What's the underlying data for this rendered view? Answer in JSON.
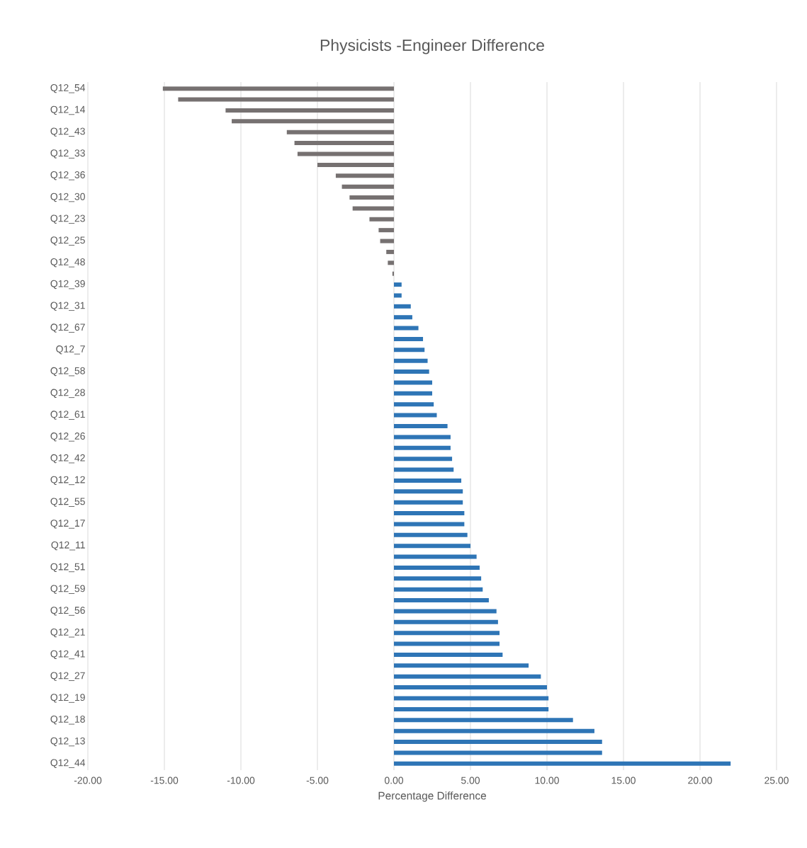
{
  "chart_data": {
    "type": "bar",
    "orientation": "horizontal",
    "title": "Physicists -Engineer Difference",
    "xlabel": "Percentage Difference",
    "categories": [
      "Q12_54",
      null,
      "Q12_14",
      null,
      "Q12_43",
      null,
      "Q12_33",
      null,
      "Q12_36",
      null,
      "Q12_30",
      null,
      "Q12_23",
      null,
      "Q12_25",
      null,
      "Q12_48",
      null,
      "Q12_39",
      null,
      "Q12_31",
      null,
      "Q12_67",
      null,
      "Q12_7",
      null,
      "Q12_58",
      null,
      "Q12_28",
      null,
      "Q12_61",
      null,
      "Q12_26",
      null,
      "Q12_42",
      null,
      "Q12_12",
      null,
      "Q12_55",
      null,
      "Q12_17",
      null,
      "Q12_11",
      null,
      "Q12_51",
      null,
      "Q12_59",
      null,
      "Q12_56",
      null,
      "Q12_21",
      null,
      "Q12_41",
      null,
      "Q12_27",
      null,
      "Q12_19",
      null,
      "Q12_18",
      null,
      "Q12_13",
      null,
      "Q12_44"
    ],
    "values": [
      -15.1,
      -14.1,
      -11.0,
      -10.6,
      -7.0,
      -6.5,
      -6.3,
      -5.0,
      -3.8,
      -3.4,
      -2.9,
      -2.7,
      -1.6,
      -1.0,
      -0.9,
      -0.5,
      -0.4,
      -0.1,
      0.5,
      0.5,
      1.1,
      1.2,
      1.6,
      1.9,
      2.0,
      2.2,
      2.3,
      2.5,
      2.5,
      2.6,
      2.8,
      3.5,
      3.7,
      3.7,
      3.8,
      3.9,
      4.4,
      4.5,
      4.5,
      4.6,
      4.6,
      4.8,
      5.0,
      5.4,
      5.6,
      5.7,
      5.8,
      6.2,
      6.7,
      6.8,
      6.9,
      6.9,
      7.1,
      8.8,
      9.6,
      10.0,
      10.1,
      10.1,
      11.7,
      13.1,
      13.6,
      13.6,
      22.0
    ],
    "colors": [
      "#767171",
      "#767171",
      "#767171",
      "#767171",
      "#767171",
      "#767171",
      "#767171",
      "#767171",
      "#767171",
      "#767171",
      "#767171",
      "#767171",
      "#767171",
      "#767171",
      "#767171",
      "#767171",
      "#767171",
      "#767171",
      "#2e75b6",
      "#2e75b6",
      "#2e75b6",
      "#2e75b6",
      "#2e75b6",
      "#2e75b6",
      "#2e75b6",
      "#2e75b6",
      "#2e75b6",
      "#2e75b6",
      "#2e75b6",
      "#2e75b6",
      "#2e75b6",
      "#2e75b6",
      "#2e75b6",
      "#2e75b6",
      "#2e75b6",
      "#2e75b6",
      "#2e75b6",
      "#2e75b6",
      "#2e75b6",
      "#2e75b6",
      "#2e75b6",
      "#2e75b6",
      "#2e75b6",
      "#2e75b6",
      "#2e75b6",
      "#2e75b6",
      "#2e75b6",
      "#2e75b6",
      "#2e75b6",
      "#2e75b6",
      "#2e75b6",
      "#2e75b6",
      "#2e75b6",
      "#2e75b6",
      "#2e75b6",
      "#2e75b6",
      "#2e75b6",
      "#2e75b6",
      "#2e75b6",
      "#2e75b6",
      "#2e75b6",
      "#2e75b6",
      "#2e75b6"
    ],
    "xlim": [
      -20,
      25
    ],
    "xticks": [
      {
        "value": -20,
        "label": "-20.00"
      },
      {
        "value": -15,
        "label": "-15.00"
      },
      {
        "value": -10,
        "label": "-10.00"
      },
      {
        "value": -5,
        "label": "-5.00"
      },
      {
        "value": 0,
        "label": "0.00"
      },
      {
        "value": 5,
        "label": "5.00"
      },
      {
        "value": 10,
        "label": "10.00"
      },
      {
        "value": 15,
        "label": "15.00"
      },
      {
        "value": 20,
        "label": "20.00"
      },
      {
        "value": 25,
        "label": "25.00"
      }
    ],
    "grid": "x"
  }
}
